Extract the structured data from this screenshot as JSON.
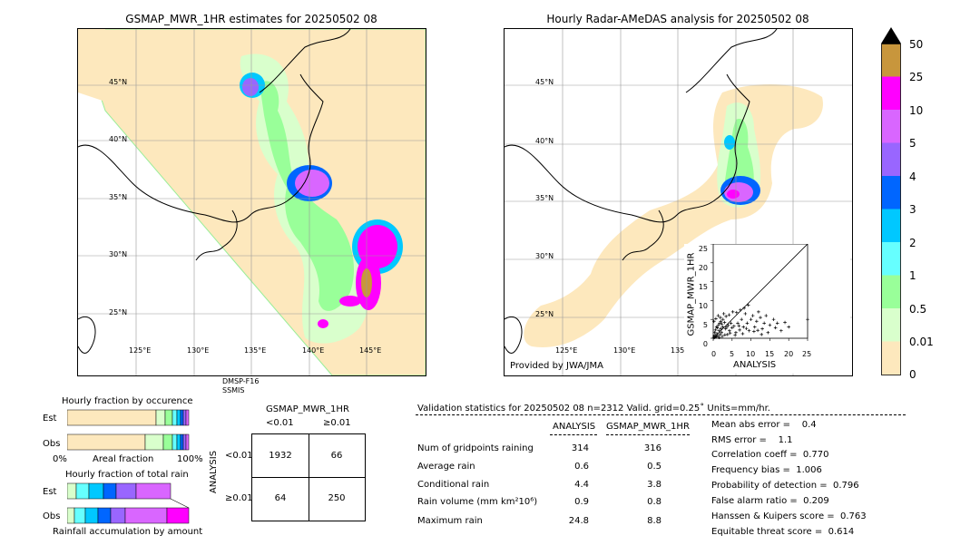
{
  "left_map": {
    "title": "GSMAP_MWR_1HR estimates for 20250502 08",
    "lat_labels": [
      "45°N",
      "40°N",
      "35°N",
      "30°N",
      "25°N"
    ],
    "lon_labels": [
      "125°E",
      "130°E",
      "135°E",
      "140°E",
      "145°E"
    ],
    "satellite": [
      "DMSP-F16",
      "SSMIS"
    ]
  },
  "right_map": {
    "title": "Hourly Radar-AMeDAS analysis for 20250502 08",
    "lat_labels": [
      "45°N",
      "40°N",
      "35°N",
      "30°N",
      "25°N"
    ],
    "lon_labels": [
      "125°E",
      "130°E",
      "135°E"
    ],
    "credit": "Provided by JWA/JMA"
  },
  "scatter": {
    "xlabel": "ANALYSIS",
    "ylabel": "GSMAP_MWR_1HR",
    "ticks": [
      "0",
      "5",
      "10",
      "15",
      "20",
      "25"
    ]
  },
  "colorbar": {
    "labels": [
      "50",
      "25",
      "10",
      "5",
      "4",
      "3",
      "2",
      "1",
      "0.5",
      "0.01",
      "0"
    ],
    "colors": [
      "#c8963c",
      "#ff00ff",
      "#d966ff",
      "#9966ff",
      "#0066ff",
      "#00c8ff",
      "#66ffff",
      "#99ff99",
      "#d9ffcc",
      "#fde8bd"
    ],
    "over_color": "#000000"
  },
  "fraction_occurrence": {
    "title": "Hourly fraction by occurence",
    "rows": [
      "Est",
      "Obs"
    ],
    "axis_left": "0%",
    "axis_mid": "Areal fraction",
    "axis_right": "100%"
  },
  "fraction_total": {
    "title": "Hourly fraction of total rain",
    "rows": [
      "Est",
      "Obs"
    ],
    "axis_label": "Rainfall accumulation by amount"
  },
  "contingency": {
    "title": "GSMAP_MWR_1HR",
    "col_headers": [
      "<0.01",
      "≥0.01"
    ],
    "row_axis": "ANALYSIS",
    "row_headers": [
      "<0.01",
      "≥0.01"
    ],
    "cells": [
      [
        "1932",
        "66"
      ],
      [
        "64",
        "250"
      ]
    ]
  },
  "validation": {
    "header": "Validation statistics for 20250502 08  n=2312 Valid. grid=0.25˚ Units=mm/hr.",
    "col_analysis": "ANALYSIS",
    "col_gsmap": "GSMAP_MWR_1HR",
    "rows": [
      {
        "label": "Num of gridpoints raining",
        "analysis": "314",
        "gsmap": "316"
      },
      {
        "label": "Average rain",
        "analysis": "0.6",
        "gsmap": "0.5"
      },
      {
        "label": "Conditional rain",
        "analysis": "4.4",
        "gsmap": "3.8"
      },
      {
        "label": "Rain volume (mm km²10⁶)",
        "analysis": "0.9",
        "gsmap": "0.8"
      },
      {
        "label": "Maximum rain",
        "analysis": "24.8",
        "gsmap": "8.8"
      }
    ],
    "scores": [
      "Mean abs error =    0.4",
      "RMS error =    1.1",
      "Correlation coeff =  0.770",
      "Frequency bias =  1.006",
      "Probability of detection =  0.796",
      "False alarm ratio =  0.209",
      "Hanssen & Kuipers score =  0.763",
      "Equitable threat score =  0.614"
    ]
  },
  "chart_data": {
    "type": "scatter",
    "xlabel": "ANALYSIS",
    "ylabel": "GSMAP_MWR_1HR",
    "xlim": [
      0,
      25
    ],
    "ylim": [
      0,
      25
    ],
    "points": [
      [
        0.3,
        0.2
      ],
      [
        0.5,
        0.8
      ],
      [
        0.8,
        0.4
      ],
      [
        1,
        1.2
      ],
      [
        1.2,
        0.6
      ],
      [
        1.5,
        2
      ],
      [
        1.8,
        1
      ],
      [
        2,
        2.5
      ],
      [
        2.2,
        1.5
      ],
      [
        2.5,
        3
      ],
      [
        0.4,
        1.5
      ],
      [
        0.6,
        2.2
      ],
      [
        0.9,
        3
      ],
      [
        1.1,
        2.8
      ],
      [
        1.4,
        3.5
      ],
      [
        1.7,
        4
      ],
      [
        2,
        4.5
      ],
      [
        2.3,
        3.8
      ],
      [
        2.6,
        5
      ],
      [
        3,
        4.2
      ],
      [
        3.3,
        2.5
      ],
      [
        3.6,
        3
      ],
      [
        4,
        3.5
      ],
      [
        4.3,
        2
      ],
      [
        4.7,
        4
      ],
      [
        5,
        2.8
      ],
      [
        5.5,
        3.2
      ],
      [
        6,
        1.5
      ],
      [
        6.5,
        4
      ],
      [
        7,
        2.2
      ],
      [
        7.5,
        5
      ],
      [
        8,
        3
      ],
      [
        8.5,
        6.5
      ],
      [
        9,
        4
      ],
      [
        9.5,
        2
      ],
      [
        10,
        5
      ],
      [
        10.5,
        6
      ],
      [
        11,
        3
      ],
      [
        11.5,
        4.5
      ],
      [
        12,
        7
      ],
      [
        12.5,
        5.5
      ],
      [
        13,
        2.5
      ],
      [
        13.5,
        4
      ],
      [
        14,
        6
      ],
      [
        15,
        3.5
      ],
      [
        16,
        5
      ],
      [
        17,
        4
      ],
      [
        18,
        2
      ],
      [
        20,
        3
      ],
      [
        25,
        5
      ],
      [
        0.2,
        4.5
      ],
      [
        0.7,
        5.2
      ],
      [
        1.3,
        6
      ],
      [
        1.9,
        5.5
      ],
      [
        2.8,
        6.5
      ],
      [
        3.4,
        5.8
      ],
      [
        4.2,
        6.2
      ],
      [
        5.2,
        7
      ],
      [
        6.2,
        6.8
      ],
      [
        7.2,
        7.5
      ],
      [
        8.2,
        8
      ],
      [
        9.3,
        8.8
      ],
      [
        3.8,
        1
      ],
      [
        5.8,
        0.8
      ],
      [
        7.8,
        1.2
      ],
      [
        10.8,
        1.8
      ],
      [
        12.8,
        1
      ],
      [
        0.1,
        0.1
      ],
      [
        0.2,
        0.5
      ],
      [
        0.5,
        0.3
      ],
      [
        1.6,
        0.2
      ],
      [
        2.4,
        0.5
      ],
      [
        3.1,
        0.9
      ],
      [
        4.5,
        1.4
      ],
      [
        6.8,
        3.3
      ],
      [
        8.8,
        2.6
      ],
      [
        11.8,
        2.1
      ],
      [
        14.5,
        1.5
      ],
      [
        16.5,
        2.8
      ],
      [
        19,
        4.2
      ]
    ]
  }
}
